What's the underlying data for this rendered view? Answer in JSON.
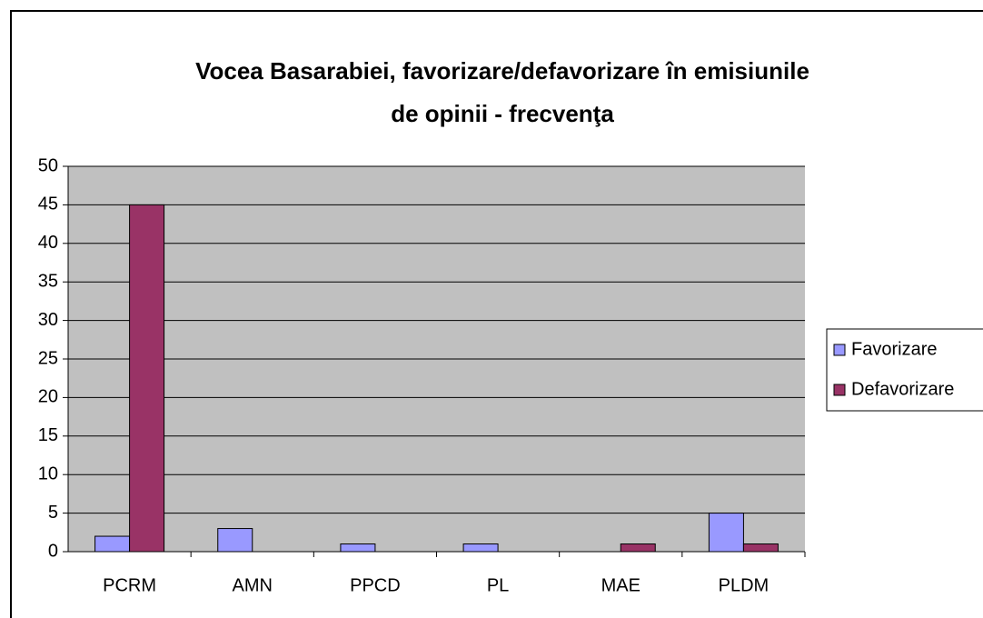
{
  "chart_data": {
    "type": "bar",
    "title": [
      "Vocea Basarabiei, favorizare/defavorizare în emisiunile",
      "de opinii - frecvenţa"
    ],
    "categories": [
      "PCRM",
      "AMN",
      "PPCD",
      "PL",
      "MAE",
      "PLDM"
    ],
    "series": [
      {
        "name": "Favorizare",
        "color": "#9999ff",
        "values": [
          2,
          3,
          1,
          1,
          0,
          5
        ]
      },
      {
        "name": "Defavorizare",
        "color": "#993366",
        "values": [
          45,
          0,
          0,
          0,
          1,
          1
        ]
      }
    ],
    "ylim": [
      0,
      50
    ],
    "yticks": [
      0,
      5,
      10,
      15,
      20,
      25,
      30,
      35,
      40,
      45,
      50
    ],
    "grid": true,
    "legend": "right"
  }
}
